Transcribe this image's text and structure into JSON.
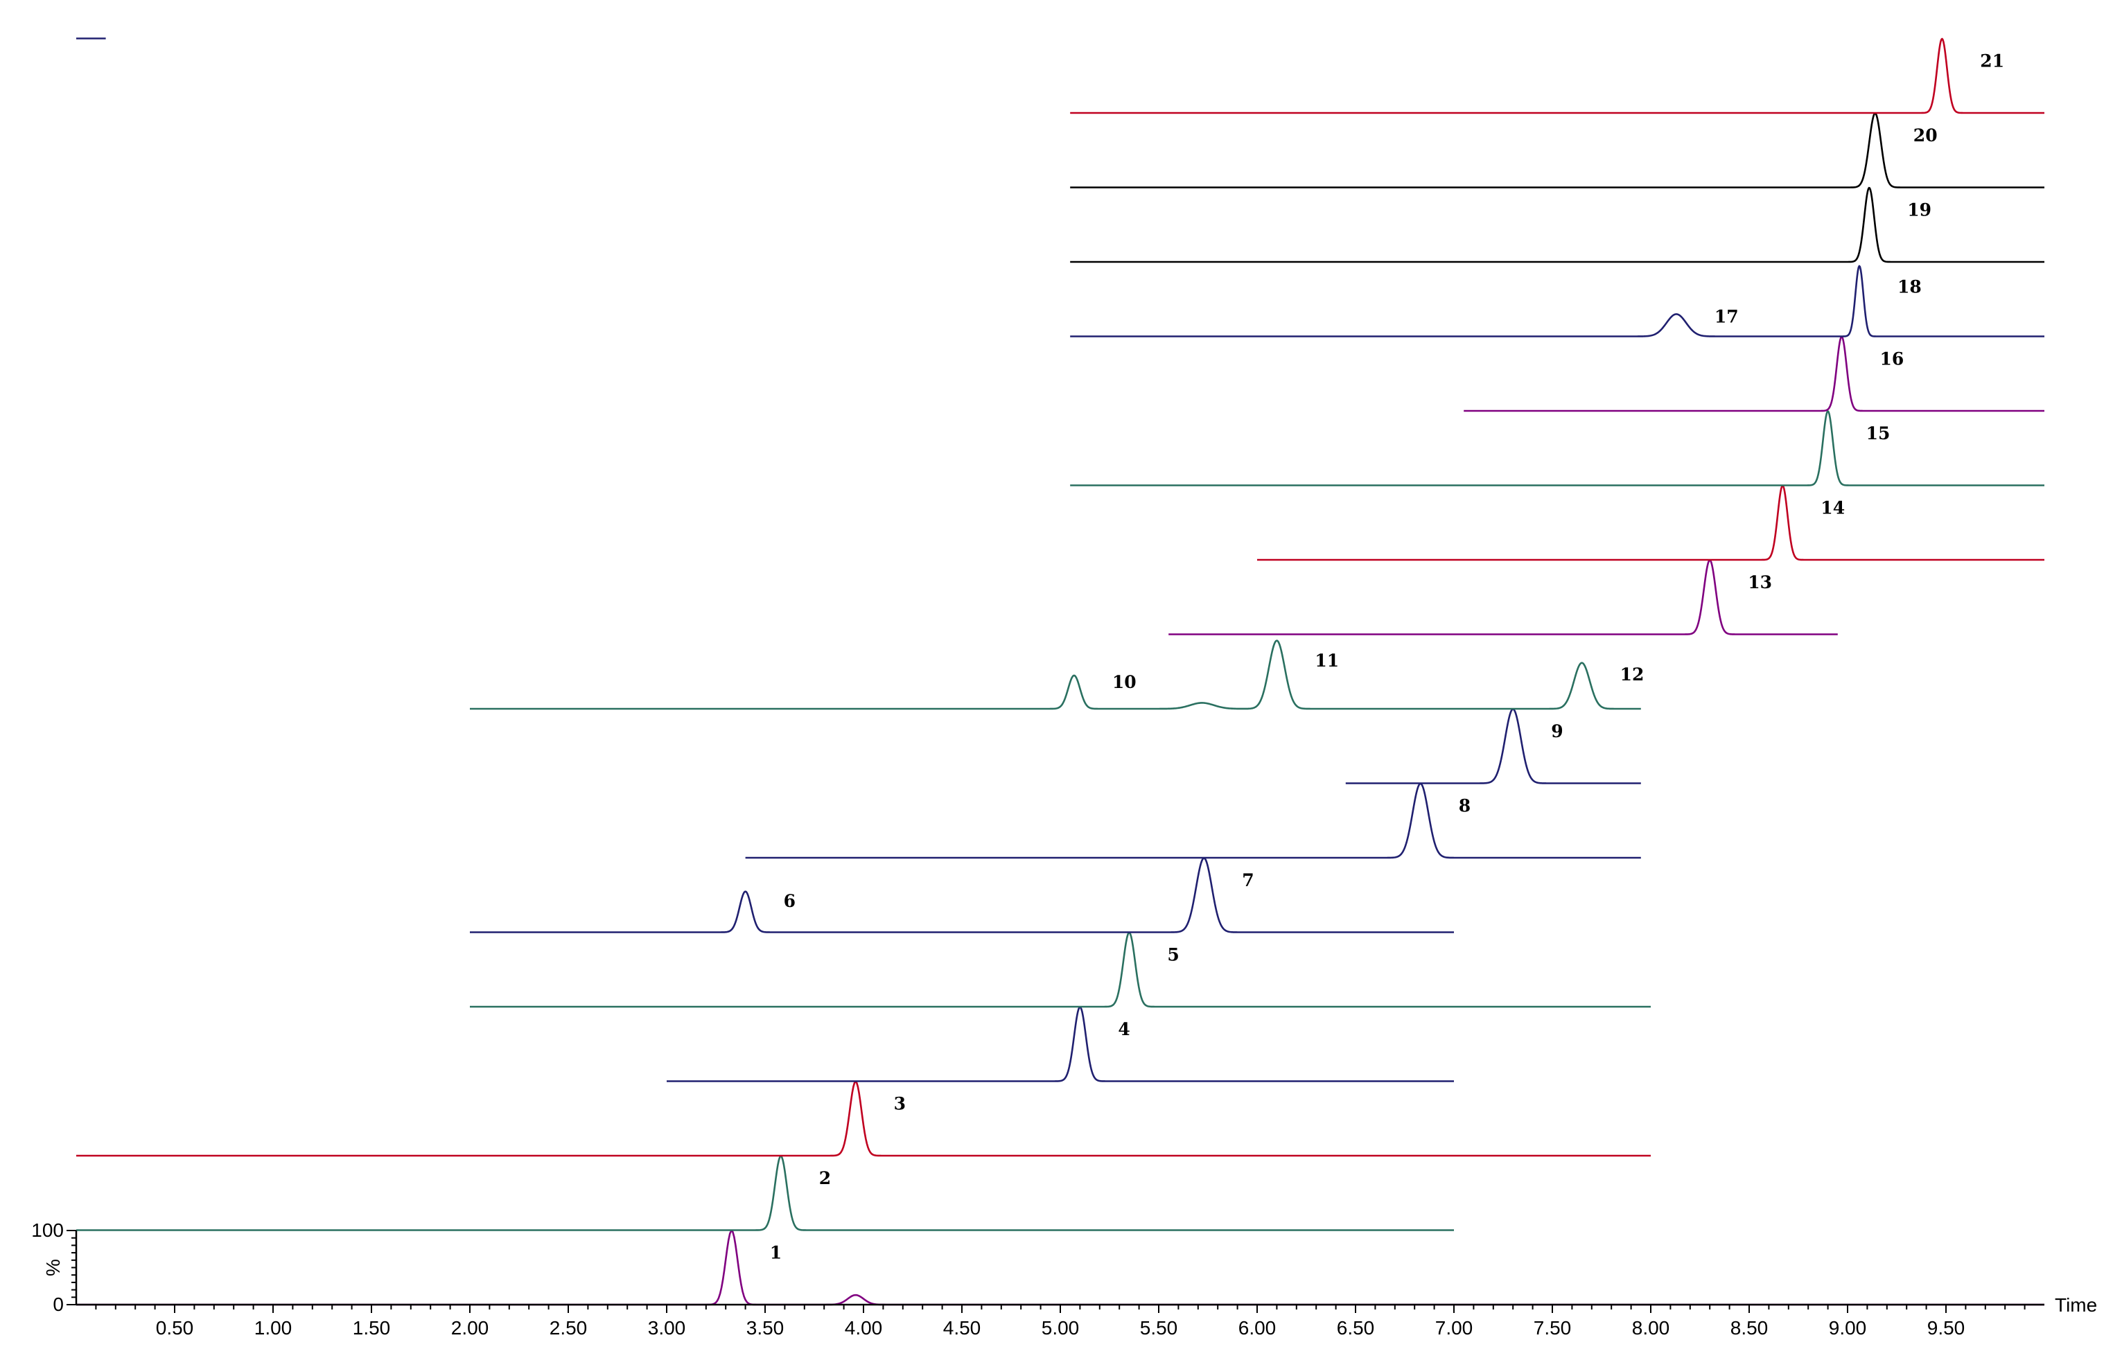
{
  "chart_data": {
    "type": "line",
    "title": "",
    "xlabel": "Time",
    "ylabel": "%",
    "xlim": [
      0,
      10.0
    ],
    "x_ticks": [
      "0.50",
      "1.00",
      "1.50",
      "2.00",
      "2.50",
      "3.00",
      "3.50",
      "4.00",
      "4.50",
      "5.00",
      "5.50",
      "6.00",
      "6.50",
      "7.00",
      "7.50",
      "8.00",
      "8.50",
      "9.00",
      "9.50"
    ],
    "y_ticks": [
      "0",
      "100"
    ],
    "grid": false,
    "legend": "none",
    "note_layout": "stacked chromatograms; lowest trace is on the printed 0–100% scale",
    "series": [
      {
        "color": "#800080",
        "x_range": [
          0.0,
          10.0
        ],
        "peaks": [
          {
            "time": 3.33,
            "rel": 1.0,
            "width": 0.03,
            "label": "1"
          },
          {
            "time": 3.96,
            "rel": 0.13,
            "width": 0.04
          }
        ]
      },
      {
        "color": "#2a7060",
        "x_range": [
          0.0,
          7.0
        ],
        "peaks": [
          {
            "time": 3.58,
            "rel": 1.0,
            "width": 0.03,
            "label": "2"
          }
        ]
      },
      {
        "color": "#c00020",
        "x_range": [
          0.0,
          8.0
        ],
        "peaks": [
          {
            "time": 3.96,
            "rel": 1.0,
            "width": 0.03,
            "label": "3"
          }
        ]
      },
      {
        "color": "#202070",
        "x_range": [
          3.0,
          7.0
        ],
        "peaks": [
          {
            "time": 5.1,
            "rel": 1.0,
            "width": 0.03,
            "label": "4"
          }
        ]
      },
      {
        "color": "#2a7060",
        "x_range": [
          2.0,
          8.0
        ],
        "peaks": [
          {
            "time": 5.35,
            "rel": 1.0,
            "width": 0.03,
            "label": "5"
          }
        ]
      },
      {
        "color": "#202070",
        "x_range": [
          2.0,
          7.0
        ],
        "peaks": [
          {
            "time": 3.4,
            "rel": 0.55,
            "width": 0.03,
            "label": "6"
          },
          {
            "time": 5.73,
            "rel": 1.0,
            "width": 0.04,
            "label": "7"
          }
        ]
      },
      {
        "color": "#202070",
        "x_range": [
          3.4,
          7.95
        ],
        "peaks": [
          {
            "time": 6.83,
            "rel": 1.0,
            "width": 0.04,
            "label": "8"
          }
        ]
      },
      {
        "color": "#202070",
        "x_range": [
          6.45,
          7.95
        ],
        "peaks": [
          {
            "time": 7.3,
            "rel": 1.0,
            "width": 0.04,
            "label": "9"
          }
        ]
      },
      {
        "color": "#2a7060",
        "x_range": [
          2.0,
          7.95
        ],
        "peaks": [
          {
            "time": 5.07,
            "rel": 0.45,
            "width": 0.03,
            "label": "10"
          },
          {
            "time": 5.72,
            "rel": 0.08,
            "width": 0.06
          },
          {
            "time": 6.1,
            "rel": 0.92,
            "width": 0.04,
            "label": "11"
          },
          {
            "time": 7.65,
            "rel": 0.62,
            "width": 0.04,
            "label": "12"
          }
        ]
      },
      {
        "color": "#800080",
        "x_range": [
          5.55,
          8.95
        ],
        "peaks": [
          {
            "time": 8.3,
            "rel": 1.0,
            "width": 0.03,
            "label": "13"
          }
        ]
      },
      {
        "color": "#c00020",
        "x_range": [
          6.0,
          10.0
        ],
        "peaks": [
          {
            "time": 8.67,
            "rel": 1.0,
            "width": 0.025,
            "label": "14"
          }
        ]
      },
      {
        "color": "#2a7060",
        "x_range": [
          5.05,
          10.0
        ],
        "peaks": [
          {
            "time": 8.9,
            "rel": 1.0,
            "width": 0.025,
            "label": "15"
          }
        ]
      },
      {
        "color": "#800080",
        "x_range": [
          7.05,
          10.0
        ],
        "peaks": [
          {
            "time": 8.97,
            "rel": 1.0,
            "width": 0.025,
            "label": "16"
          }
        ]
      },
      {
        "color": "#202070",
        "x_range": [
          5.05,
          10.0
        ],
        "peaks": [
          {
            "time": 8.13,
            "rel": 0.3,
            "width": 0.05,
            "label": "17"
          },
          {
            "time": 9.06,
            "rel": 0.95,
            "width": 0.02,
            "label": "18"
          }
        ]
      },
      {
        "color": "#000000",
        "x_range": [
          5.05,
          10.0
        ],
        "peaks": [
          {
            "time": 9.11,
            "rel": 1.0,
            "width": 0.025,
            "label": "19"
          }
        ]
      },
      {
        "color": "#000000",
        "x_range": [
          5.05,
          10.0
        ],
        "peaks": [
          {
            "time": 9.14,
            "rel": 1.0,
            "width": 0.03,
            "label": "20"
          }
        ]
      },
      {
        "color": "#c00020",
        "x_range": [
          5.05,
          10.0
        ],
        "peaks": [
          {
            "time": 9.48,
            "rel": 1.0,
            "width": 0.025,
            "label": "21"
          }
        ]
      },
      {
        "color": "#202070",
        "x_range": [
          0.0,
          0.15
        ],
        "peaks": []
      }
    ]
  }
}
